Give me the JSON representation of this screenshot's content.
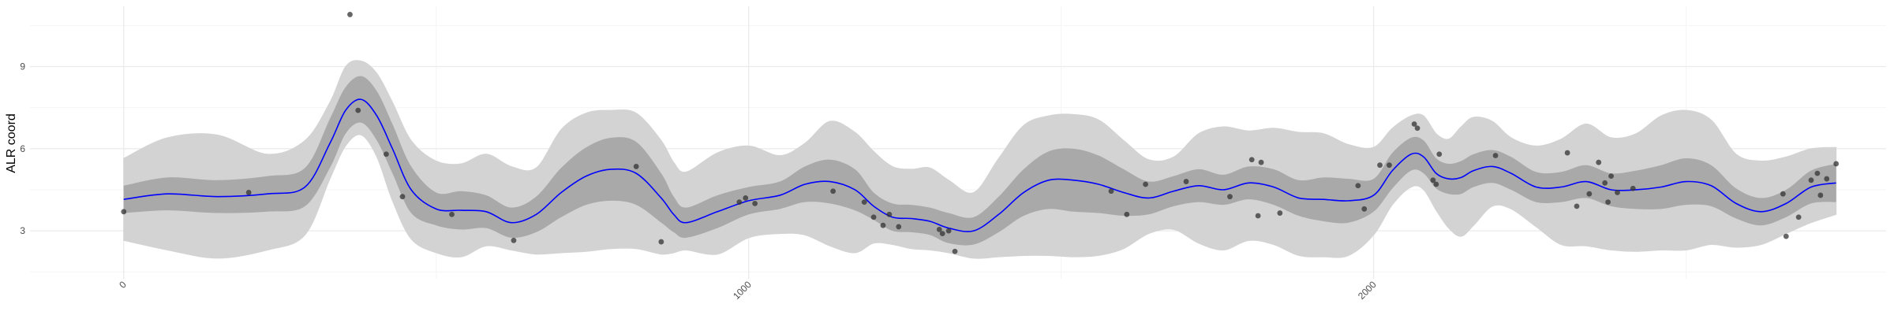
{
  "chart_data": {
    "type": "line",
    "title": "",
    "xlabel": "",
    "ylabel": "ALR coord",
    "xlim": [
      -150,
      2820
    ],
    "ylim": [
      1.25,
      11.2
    ],
    "x_ticks": [
      0,
      1000,
      2000
    ],
    "x_minor_ticks": [
      500,
      1500,
      2500
    ],
    "y_ticks": [
      3,
      6,
      9
    ],
    "y_minor_ticks": [
      1.5,
      4.5,
      7.5,
      10.5
    ],
    "grid": true,
    "legend": "none",
    "colors": {
      "line": "#0000ff",
      "inner_band": "#a9a9a9",
      "outer_band": "#d3d3d3",
      "points": "#333333",
      "grid_major": "#ebebeb",
      "grid_minor": "#f5f5f5"
    },
    "series": [
      {
        "kind": "mean",
        "x": [
          0,
          70,
          150,
          230,
          290,
          330,
          355,
          380,
          405,
          430,
          460,
          500,
          540,
          580,
          620,
          660,
          700,
          740,
          780,
          820,
          860,
          880,
          900,
          950,
          1000,
          1050,
          1090,
          1130,
          1170,
          1200,
          1230,
          1260,
          1290,
          1320,
          1360,
          1400,
          1440,
          1480,
          1520,
          1560,
          1600,
          1640,
          1680,
          1720,
          1760,
          1800,
          1840,
          1880,
          1920,
          1960,
          2000,
          2030,
          2060,
          2080,
          2100,
          2120,
          2140,
          2160,
          2190,
          2220,
          2260,
          2300,
          2340,
          2380,
          2420,
          2460,
          2500,
          2540,
          2580,
          2620,
          2660,
          2700,
          2740
        ],
        "values": [
          4.15,
          4.35,
          4.25,
          4.35,
          4.6,
          6.2,
          7.4,
          7.8,
          7.2,
          6.0,
          4.5,
          3.8,
          3.75,
          3.7,
          3.3,
          3.6,
          4.4,
          5.0,
          5.25,
          5.1,
          4.2,
          3.6,
          3.3,
          3.7,
          4.1,
          4.3,
          4.7,
          4.8,
          4.5,
          3.9,
          3.5,
          3.45,
          3.35,
          3.1,
          3.0,
          3.6,
          4.4,
          4.85,
          4.85,
          4.7,
          4.4,
          4.2,
          4.45,
          4.65,
          4.5,
          4.75,
          4.6,
          4.2,
          4.15,
          4.1,
          4.3,
          5.2,
          5.8,
          5.7,
          5.1,
          4.9,
          4.95,
          5.2,
          5.35,
          5.1,
          4.6,
          4.6,
          4.8,
          4.5,
          4.5,
          4.6,
          4.8,
          4.65,
          4.0,
          3.7,
          4.0,
          4.6,
          4.75
        ]
      },
      {
        "kind": "inner_band",
        "x": [
          0,
          70,
          150,
          230,
          290,
          330,
          355,
          380,
          405,
          430,
          460,
          500,
          540,
          580,
          620,
          660,
          700,
          740,
          780,
          820,
          860,
          880,
          900,
          950,
          1000,
          1050,
          1090,
          1130,
          1170,
          1200,
          1230,
          1260,
          1290,
          1320,
          1360,
          1400,
          1440,
          1480,
          1520,
          1560,
          1600,
          1640,
          1680,
          1720,
          1760,
          1800,
          1840,
          1880,
          1920,
          1960,
          2000,
          2030,
          2060,
          2080,
          2100,
          2120,
          2140,
          2160,
          2190,
          2220,
          2260,
          2300,
          2340,
          2380,
          2420,
          2460,
          2500,
          2540,
          2580,
          2620,
          2660,
          2700,
          2740
        ],
        "lower": [
          3.65,
          3.75,
          3.65,
          3.7,
          3.9,
          5.3,
          6.55,
          6.95,
          6.3,
          5.1,
          3.65,
          3.2,
          3.05,
          3.1,
          2.75,
          2.95,
          3.5,
          3.95,
          4.1,
          3.95,
          3.3,
          2.95,
          2.75,
          3.1,
          3.6,
          3.8,
          4.05,
          4.0,
          3.75,
          3.4,
          3.0,
          2.95,
          2.85,
          2.55,
          2.5,
          2.95,
          3.55,
          3.8,
          3.7,
          3.65,
          3.55,
          3.6,
          3.9,
          4.05,
          3.95,
          4.15,
          3.95,
          3.55,
          3.35,
          3.3,
          3.7,
          4.55,
          5.2,
          5.1,
          4.55,
          4.35,
          4.35,
          4.6,
          4.75,
          4.5,
          4.05,
          4.05,
          4.2,
          3.9,
          3.8,
          3.8,
          3.95,
          3.9,
          3.45,
          3.2,
          3.5,
          4.0,
          4.05
        ],
        "upper": [
          4.65,
          4.95,
          4.85,
          5.0,
          5.3,
          7.1,
          8.25,
          8.65,
          8.1,
          6.9,
          5.35,
          4.4,
          4.45,
          4.3,
          3.85,
          4.25,
          5.3,
          6.05,
          6.4,
          6.25,
          5.1,
          4.25,
          3.85,
          4.3,
          4.6,
          4.8,
          5.35,
          5.6,
          5.25,
          4.4,
          4.0,
          3.95,
          3.85,
          3.65,
          3.5,
          4.25,
          5.25,
          5.9,
          6.0,
          5.75,
          5.25,
          4.8,
          5.0,
          5.25,
          5.05,
          5.35,
          5.25,
          4.85,
          4.95,
          4.9,
          4.9,
          5.85,
          6.4,
          6.3,
          5.65,
          5.45,
          5.55,
          5.8,
          5.95,
          5.7,
          5.15,
          5.15,
          5.4,
          5.1,
          5.2,
          5.4,
          5.65,
          5.4,
          4.55,
          4.2,
          4.5,
          5.2,
          5.45
        ]
      },
      {
        "kind": "outer_band",
        "x": [
          0,
          70,
          150,
          230,
          290,
          330,
          355,
          380,
          405,
          430,
          460,
          500,
          540,
          580,
          620,
          660,
          700,
          740,
          780,
          820,
          860,
          880,
          900,
          950,
          1000,
          1050,
          1090,
          1130,
          1170,
          1200,
          1230,
          1260,
          1290,
          1320,
          1360,
          1400,
          1440,
          1480,
          1520,
          1560,
          1600,
          1640,
          1680,
          1720,
          1760,
          1800,
          1840,
          1880,
          1920,
          1960,
          2000,
          2030,
          2060,
          2080,
          2100,
          2120,
          2140,
          2160,
          2190,
          2220,
          2260,
          2300,
          2340,
          2380,
          2420,
          2460,
          2500,
          2540,
          2580,
          2620,
          2660,
          2700,
          2740
        ],
        "lower": [
          2.65,
          2.3,
          2.0,
          2.3,
          2.85,
          4.9,
          6.1,
          6.5,
          5.7,
          4.1,
          2.7,
          2.2,
          2.05,
          2.45,
          2.3,
          2.15,
          2.2,
          2.25,
          2.35,
          2.35,
          2.15,
          2.2,
          2.3,
          2.15,
          2.75,
          2.9,
          2.85,
          2.45,
          2.2,
          2.55,
          2.5,
          2.35,
          2.3,
          2.2,
          2.0,
          2.05,
          2.1,
          2.1,
          2.05,
          2.1,
          2.35,
          2.9,
          3.05,
          2.55,
          2.3,
          2.65,
          2.5,
          2.1,
          2.05,
          2.1,
          2.85,
          3.95,
          4.6,
          4.5,
          3.75,
          3.1,
          2.8,
          3.2,
          3.9,
          3.8,
          3.15,
          2.5,
          2.45,
          2.3,
          2.25,
          2.3,
          2.3,
          2.5,
          2.4,
          2.5,
          2.9,
          3.3,
          3.6
        ],
        "upper": [
          5.65,
          6.4,
          6.5,
          5.8,
          6.3,
          7.7,
          9.0,
          9.2,
          8.75,
          7.7,
          6.3,
          5.55,
          5.45,
          5.8,
          5.35,
          5.3,
          6.7,
          7.3,
          7.4,
          7.3,
          6.3,
          5.5,
          5.15,
          5.85,
          6.1,
          5.75,
          6.2,
          7.0,
          6.6,
          5.9,
          5.35,
          5.25,
          5.3,
          4.85,
          4.4,
          5.65,
          6.85,
          7.2,
          7.25,
          7.05,
          6.3,
          5.6,
          5.7,
          6.55,
          6.8,
          6.65,
          6.75,
          6.6,
          6.55,
          6.15,
          6.05,
          6.75,
          7.2,
          7.2,
          6.55,
          6.35,
          6.8,
          7.15,
          7.0,
          6.4,
          6.1,
          6.35,
          6.9,
          6.4,
          6.55,
          7.2,
          7.4,
          7.05,
          5.8,
          5.55,
          5.7,
          6.0,
          6.05
        ]
      },
      {
        "kind": "points",
        "x": [
          0,
          200,
          362,
          375,
          420,
          446,
          525,
          624,
          820,
          860,
          985,
          995,
          1010,
          1135,
          1185,
          1200,
          1215,
          1225,
          1240,
          1305,
          1310,
          1320,
          1330,
          1580,
          1605,
          1635,
          1700,
          1770,
          1805,
          1815,
          1820,
          1850,
          1975,
          1985,
          2010,
          2025,
          2065,
          2070,
          2095,
          2100,
          2105,
          2195,
          2310,
          2325,
          2345,
          2360,
          2370,
          2375,
          2380,
          2390,
          2415,
          2655,
          2660,
          2680,
          2700,
          2710,
          2715,
          2725,
          2740
        ],
        "values": [
          3.7,
          4.4,
          10.9,
          7.4,
          5.8,
          4.25,
          3.6,
          2.65,
          5.35,
          2.6,
          4.05,
          4.2,
          4.0,
          4.45,
          4.05,
          3.5,
          3.2,
          3.6,
          3.15,
          3.05,
          2.9,
          3.0,
          2.25,
          4.45,
          3.6,
          4.7,
          4.8,
          4.25,
          5.6,
          3.55,
          5.5,
          3.65,
          4.65,
          3.8,
          5.4,
          5.4,
          6.9,
          6.75,
          4.85,
          4.7,
          5.8,
          5.75,
          5.85,
          3.9,
          4.35,
          5.5,
          4.75,
          4.05,
          5.0,
          4.4,
          4.55,
          4.35,
          2.8,
          3.5,
          4.85,
          5.1,
          4.3,
          4.9,
          5.45
        ]
      }
    ]
  }
}
